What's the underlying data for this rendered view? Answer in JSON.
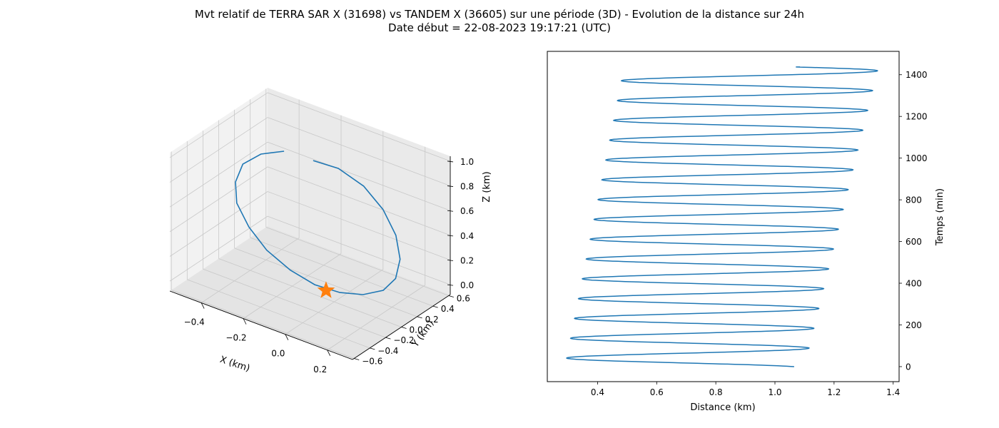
{
  "title": {
    "line1": "Mvt relatif de TERRA SAR X (31698) vs TANDEM X (36605) sur une période (3D) - Evolution de la distance sur 24h",
    "line2": "Date début = 22-08-2023 19:17:21 (UTC)"
  },
  "colors": {
    "series": "#1f77b4",
    "marker": "#ff7f0e",
    "pane_left": "#f2f2f2",
    "pane_right": "#eaeaea",
    "pane_floor": "#e4e4e4",
    "grid": "#c8c8c8"
  },
  "chart_data": [
    {
      "type": "line",
      "projection": "3d",
      "xlabel": "X (km)",
      "ylabel": "Y (km)",
      "zlabel": "Z (km)",
      "xlim": [
        -0.55,
        0.32
      ],
      "ylim": [
        -0.62,
        0.62
      ],
      "zlim": [
        -0.08,
        1.04
      ],
      "xticks": [
        "−0.4",
        "−0.2",
        "0.0",
        "0.2"
      ],
      "yticks": [
        "−0.6",
        "−0.4",
        "−0.2",
        "0.0",
        "0.2",
        "0.4",
        "0.6"
      ],
      "zticks": [
        "0.0",
        "0.2",
        "0.4",
        "0.6",
        "0.8",
        "1.0"
      ],
      "grid": true,
      "series": [
        {
          "marker": "none",
          "points": [
            {
              "x": -0.1,
              "y": 0.0,
              "z": 1.0
            },
            {
              "x": -0.01,
              "y": 0.08,
              "z": 0.96
            },
            {
              "x": 0.08,
              "y": 0.16,
              "z": 0.84
            },
            {
              "x": 0.15,
              "y": 0.22,
              "z": 0.67
            },
            {
              "x": 0.2,
              "y": 0.25,
              "z": 0.48
            },
            {
              "x": 0.22,
              "y": 0.25,
              "z": 0.3
            },
            {
              "x": 0.21,
              "y": 0.22,
              "z": 0.15
            },
            {
              "x": 0.17,
              "y": 0.17,
              "z": 0.05
            },
            {
              "x": 0.1,
              "y": 0.1,
              "z": 0.0
            },
            {
              "x": 0.02,
              "y": 0.02,
              "z": 0.0
            },
            {
              "x": -0.07,
              "y": -0.06,
              "z": 0.04
            },
            {
              "x": -0.16,
              "y": -0.13,
              "z": 0.13
            },
            {
              "x": -0.25,
              "y": -0.19,
              "z": 0.26
            },
            {
              "x": -0.32,
              "y": -0.23,
              "z": 0.42
            },
            {
              "x": -0.37,
              "y": -0.25,
              "z": 0.59
            },
            {
              "x": -0.38,
              "y": -0.24,
              "z": 0.75
            },
            {
              "x": -0.36,
              "y": -0.2,
              "z": 0.89
            },
            {
              "x": -0.3,
              "y": -0.13,
              "z": 0.98
            },
            {
              "x": -0.22,
              "y": -0.05,
              "z": 1.02
            }
          ]
        }
      ],
      "marker_point": {
        "shape": "star",
        "x": -0.02,
        "y": -0.05,
        "z": 0.02
      }
    },
    {
      "type": "line",
      "xlabel": "Distance (km)",
      "ylabel": "Temps (min)",
      "xlim": [
        0.23,
        1.42
      ],
      "ylim": [
        -72,
        1512
      ],
      "xticks": [
        "0.4",
        "0.6",
        "0.8",
        "1.0",
        "1.2",
        "1.4"
      ],
      "yticks": [
        "0",
        "200",
        "400",
        "600",
        "800",
        "1000",
        "1200",
        "1400"
      ],
      "grid": false,
      "series": [
        {
          "marker": "none",
          "start": {
            "t": 0,
            "d": 1.065
          },
          "end": {
            "t": 1437,
            "d": 1.085
          },
          "period_min": 95,
          "min_distance": {
            "start": 0.29,
            "end": 0.49
          },
          "max_distance": {
            "start": 1.1,
            "end": 1.35
          }
        }
      ]
    }
  ]
}
